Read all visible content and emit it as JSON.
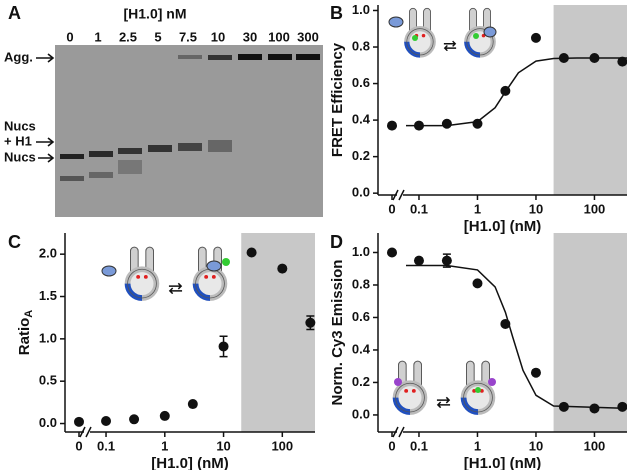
{
  "gel": {
    "panel": "A",
    "title": "[H1.0] nM",
    "lanes": [
      "0",
      "1",
      "2.5",
      "5",
      "7.5",
      "10",
      "30",
      "100",
      "300"
    ],
    "markers": [
      {
        "lines": [
          "Agg."
        ]
      },
      {
        "lines": [
          "Nucs",
          "+ H1"
        ]
      },
      {
        "lines": [
          "Nucs"
        ]
      }
    ]
  },
  "chart_data": [
    {
      "type": "scatter",
      "panel": "B",
      "y_label": "FRET Efficiency",
      "x_label": "[H1.0] (nM)",
      "x_scale": "log",
      "x_break": true,
      "color": "#111111",
      "x": [
        0,
        0.1,
        0.3,
        1,
        3,
        10,
        30,
        100,
        300
      ],
      "values": [
        0.37,
        0.37,
        0.38,
        0.38,
        0.56,
        0.85,
        0.74,
        0.74,
        0.72
      ],
      "fit": {
        "x": [
          0.06,
          0.3,
          1,
          2,
          3,
          5,
          10,
          20,
          50,
          360
        ],
        "y": [
          0.37,
          0.37,
          0.392,
          0.468,
          0.555,
          0.659,
          0.723,
          0.737,
          0.74,
          0.74
        ]
      },
      "shade": [
        20,
        360
      ],
      "shade_color": "#c8c8c8",
      "xlim": [
        0.06,
        360
      ],
      "ylim": [
        -0.01,
        1.03
      ],
      "xticks": [
        0,
        0.1,
        1,
        10,
        100
      ],
      "yticks": [
        {
          "value": 0,
          "label": "0.0"
        },
        {
          "value": 0.2,
          "label": "0.2"
        },
        {
          "value": 0.4,
          "label": "0.4"
        },
        {
          "value": 0.6,
          "label": "0.6"
        },
        {
          "value": 0.8,
          "label": "0.8"
        },
        {
          "value": 1.0,
          "label": "1.0"
        }
      ]
    },
    {
      "type": "scatter",
      "panel": "C",
      "y_label": "Ratio",
      "y_label_sub": "A",
      "x_label": "[H1.0] (nM)",
      "x_scale": "log",
      "x_break": true,
      "color": "#111111",
      "x": [
        0,
        0.1,
        0.3,
        1,
        3,
        10,
        30,
        100,
        300
      ],
      "values": [
        0.02,
        0.03,
        0.05,
        0.09,
        0.23,
        0.91,
        2.02,
        1.83,
        1.19
      ],
      "errors": [
        null,
        null,
        null,
        null,
        null,
        0.12,
        null,
        null,
        0.08
      ],
      "shade": [
        20,
        360
      ],
      "shade_color": "#c8c8c8",
      "xlim": [
        0.06,
        360
      ],
      "ylim": [
        -0.1,
        2.25
      ],
      "xticks": [
        0,
        0.1,
        1,
        10,
        100
      ],
      "yticks": [
        {
          "value": 0,
          "label": "0.0"
        },
        {
          "value": 0.5,
          "label": "0.5"
        },
        {
          "value": 1.0,
          "label": "1.0"
        },
        {
          "value": 1.5,
          "label": "1.5"
        },
        {
          "value": 2.0,
          "label": "2.0"
        }
      ]
    },
    {
      "type": "scatter",
      "panel": "D",
      "y_label": "Norm. Cy3 Emission",
      "x_label": "[H1.0] (nM)",
      "x_scale": "log",
      "x_break": true,
      "color": "#111111",
      "x": [
        0,
        0.1,
        0.3,
        1,
        3,
        10,
        30,
        100,
        300
      ],
      "values": [
        1.0,
        0.95,
        0.95,
        0.81,
        0.56,
        0.26,
        0.05,
        0.04,
        0.05
      ],
      "errors": [
        null,
        null,
        0.04,
        null,
        null,
        null,
        null,
        null,
        null
      ],
      "fit": {
        "x": [
          0.06,
          0.3,
          1,
          2,
          3,
          4,
          6,
          10,
          20,
          360
        ],
        "y": [
          0.92,
          0.92,
          0.893,
          0.788,
          0.632,
          0.48,
          0.274,
          0.121,
          0.055,
          0.04
        ]
      },
      "shade": [
        20,
        360
      ],
      "shade_color": "#c8c8c8",
      "xlim": [
        0.06,
        360
      ],
      "ylim": [
        -0.105,
        1.12
      ],
      "xticks": [
        0,
        0.1,
        1,
        10,
        100
      ],
      "yticks": [
        {
          "value": 0,
          "label": "0.0"
        },
        {
          "value": 0.2,
          "label": "0.2"
        },
        {
          "value": 0.4,
          "label": "0.4"
        },
        {
          "value": 0.6,
          "label": "0.6"
        },
        {
          "value": 0.8,
          "label": "0.8"
        },
        {
          "value": 1.0,
          "label": "1.0"
        }
      ]
    }
  ]
}
